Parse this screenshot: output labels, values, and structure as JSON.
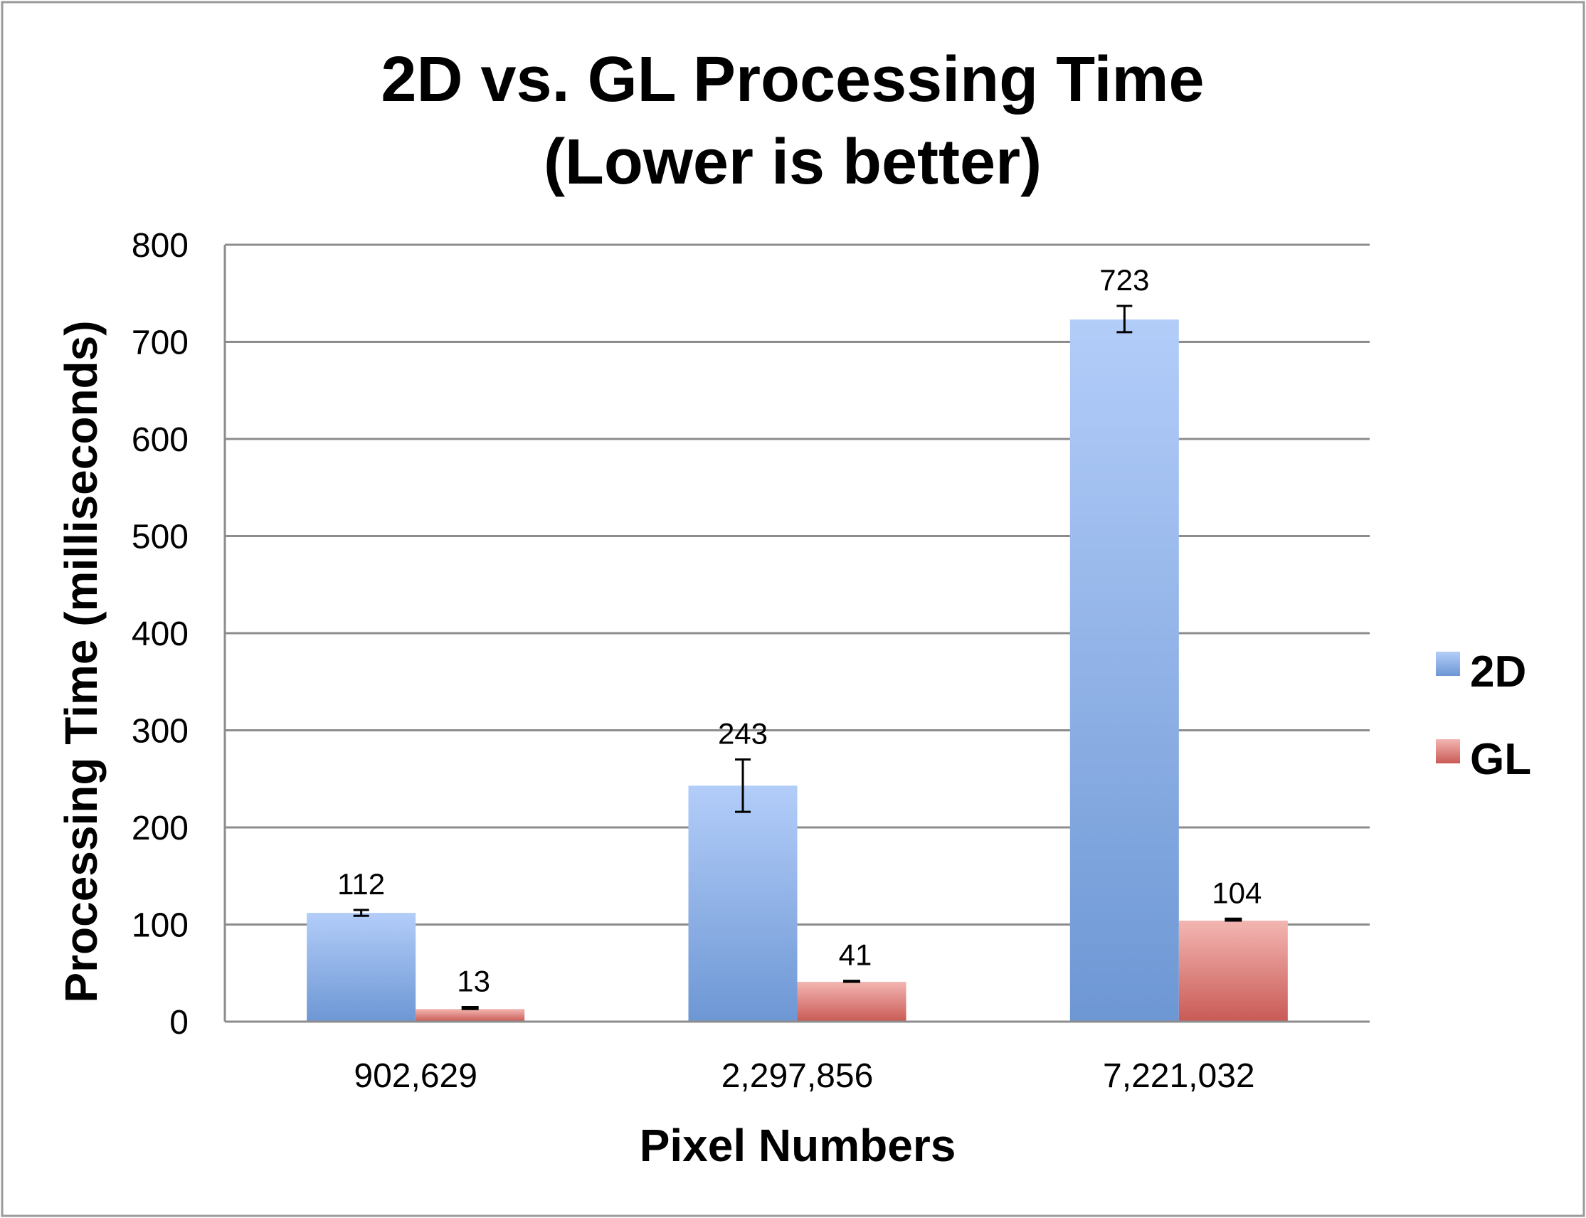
{
  "chart_data": {
    "type": "bar",
    "title_lines": [
      "2D vs. GL Processing Time",
      "(Lower is better)"
    ],
    "xlabel": "Pixel Numbers",
    "ylabel": "Processing Time (milliseconds)",
    "ylim": [
      0,
      800
    ],
    "yticks": [
      0,
      100,
      200,
      300,
      400,
      500,
      600,
      700,
      800
    ],
    "grid": true,
    "legend_position": "right",
    "categories": [
      "902,629",
      "2,297,856",
      "7,221,032"
    ],
    "series": [
      {
        "name": "2D",
        "values": [
          112,
          243,
          723
        ],
        "error_low": [
          109,
          216,
          710
        ],
        "error_high": [
          115,
          270,
          737
        ],
        "color_top": "#b3cdf9",
        "color_bottom": "#6d97d4"
      },
      {
        "name": "GL",
        "values": [
          13,
          41,
          104
        ],
        "error_low": [
          13,
          41,
          104
        ],
        "error_high": [
          15,
          42,
          106
        ],
        "color_top": "#f3b6b2",
        "color_bottom": "#c95a55"
      }
    ]
  }
}
